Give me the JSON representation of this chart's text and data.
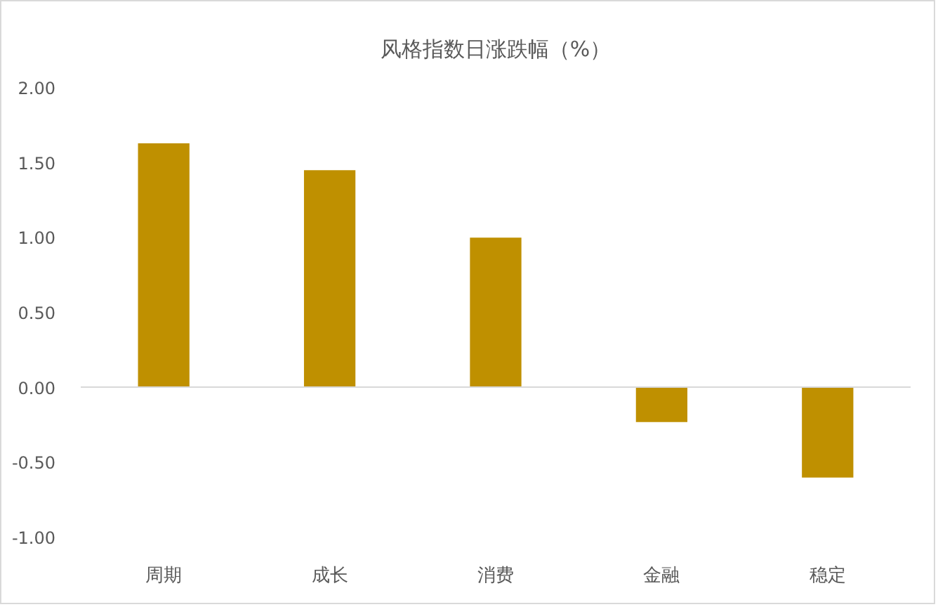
{
  "chart_data": {
    "type": "bar",
    "title": "风格指数日涨跌幅（%）",
    "categories": [
      "周期",
      "成长",
      "消费",
      "金融",
      "稳定"
    ],
    "values": [
      1.63,
      1.45,
      1.0,
      -0.23,
      -0.6
    ],
    "color": "#bf9000",
    "ylim": [
      -1,
      2
    ],
    "yticks": [
      {
        "value": -1,
        "label": "-1.00"
      },
      {
        "value": -0.5,
        "label": "-0.50"
      },
      {
        "value": 0,
        "label": "0.00"
      },
      {
        "value": 0.5,
        "label": "0.50"
      },
      {
        "value": 1,
        "label": "1.00"
      },
      {
        "value": 1.5,
        "label": "1.50"
      },
      {
        "value": 2,
        "label": "2.00"
      }
    ]
  }
}
